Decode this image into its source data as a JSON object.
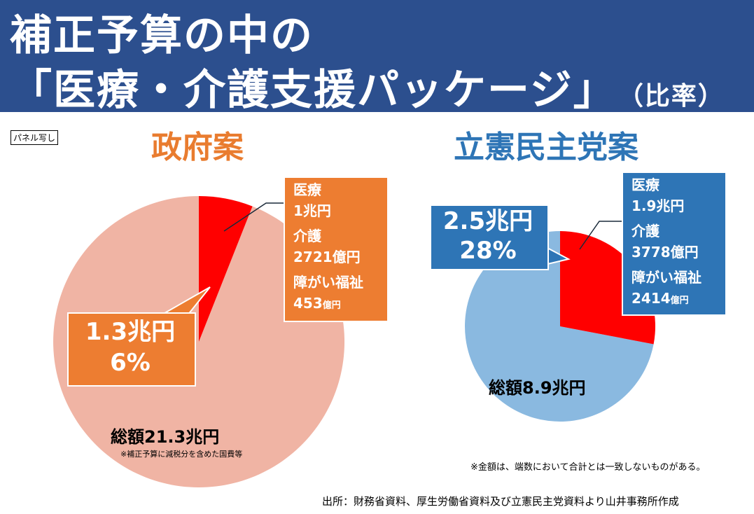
{
  "header": {
    "title_line1": "補正予算の中の",
    "title_line2": "「医療・介護支援パッケージ」",
    "title_suffix": "（比率）"
  },
  "panel_tag": "パネル写し",
  "colors": {
    "header_bg": "#2c4f8e",
    "gov_accent": "#ed7d31",
    "cdp_accent": "#2e75b6",
    "gov_pie_rest": "#f0b4a4",
    "cdp_pie_rest": "#8ab9e0",
    "package_slice": "#ff0000"
  },
  "chart_data": [
    {
      "type": "pie",
      "title": "政府案",
      "slices": [
        {
          "label": "1.3兆円",
          "value": 6
        },
        {
          "label": "総額21.3兆円",
          "value": 94
        }
      ],
      "highlight_label": {
        "amount": "1.3兆円",
        "percent": "6%"
      },
      "total_label": "総額21.3兆円",
      "total_note": "※補正予算に減税分を含めた国費等",
      "breakdown": [
        {
          "name": "医療",
          "amount": "1兆円"
        },
        {
          "name": "介護",
          "amount": "2721億円"
        },
        {
          "name": "障がい福祉",
          "amount_num": "453",
          "amount_unit": "億円"
        }
      ]
    },
    {
      "type": "pie",
      "title": "立憲民主党案",
      "slices": [
        {
          "label": "2.5兆円",
          "value": 28
        },
        {
          "label": "総額8.9兆円",
          "value": 72
        }
      ],
      "highlight_label": {
        "amount": "2.5兆円",
        "percent": "28%"
      },
      "total_label": "総額8.9兆円",
      "breakdown": [
        {
          "name": "医療",
          "amount": "1.9兆円"
        },
        {
          "name": "介護",
          "amount": "3778億円"
        },
        {
          "name": "障がい福祉",
          "amount_num": "2414",
          "amount_unit": "億円"
        }
      ]
    }
  ],
  "footnote": "※金額は、端数において合計とは一致しないものがある。",
  "source": "出所：財務省資料、厚生労働省資料及び立憲民主党資料より山井事務所作成"
}
